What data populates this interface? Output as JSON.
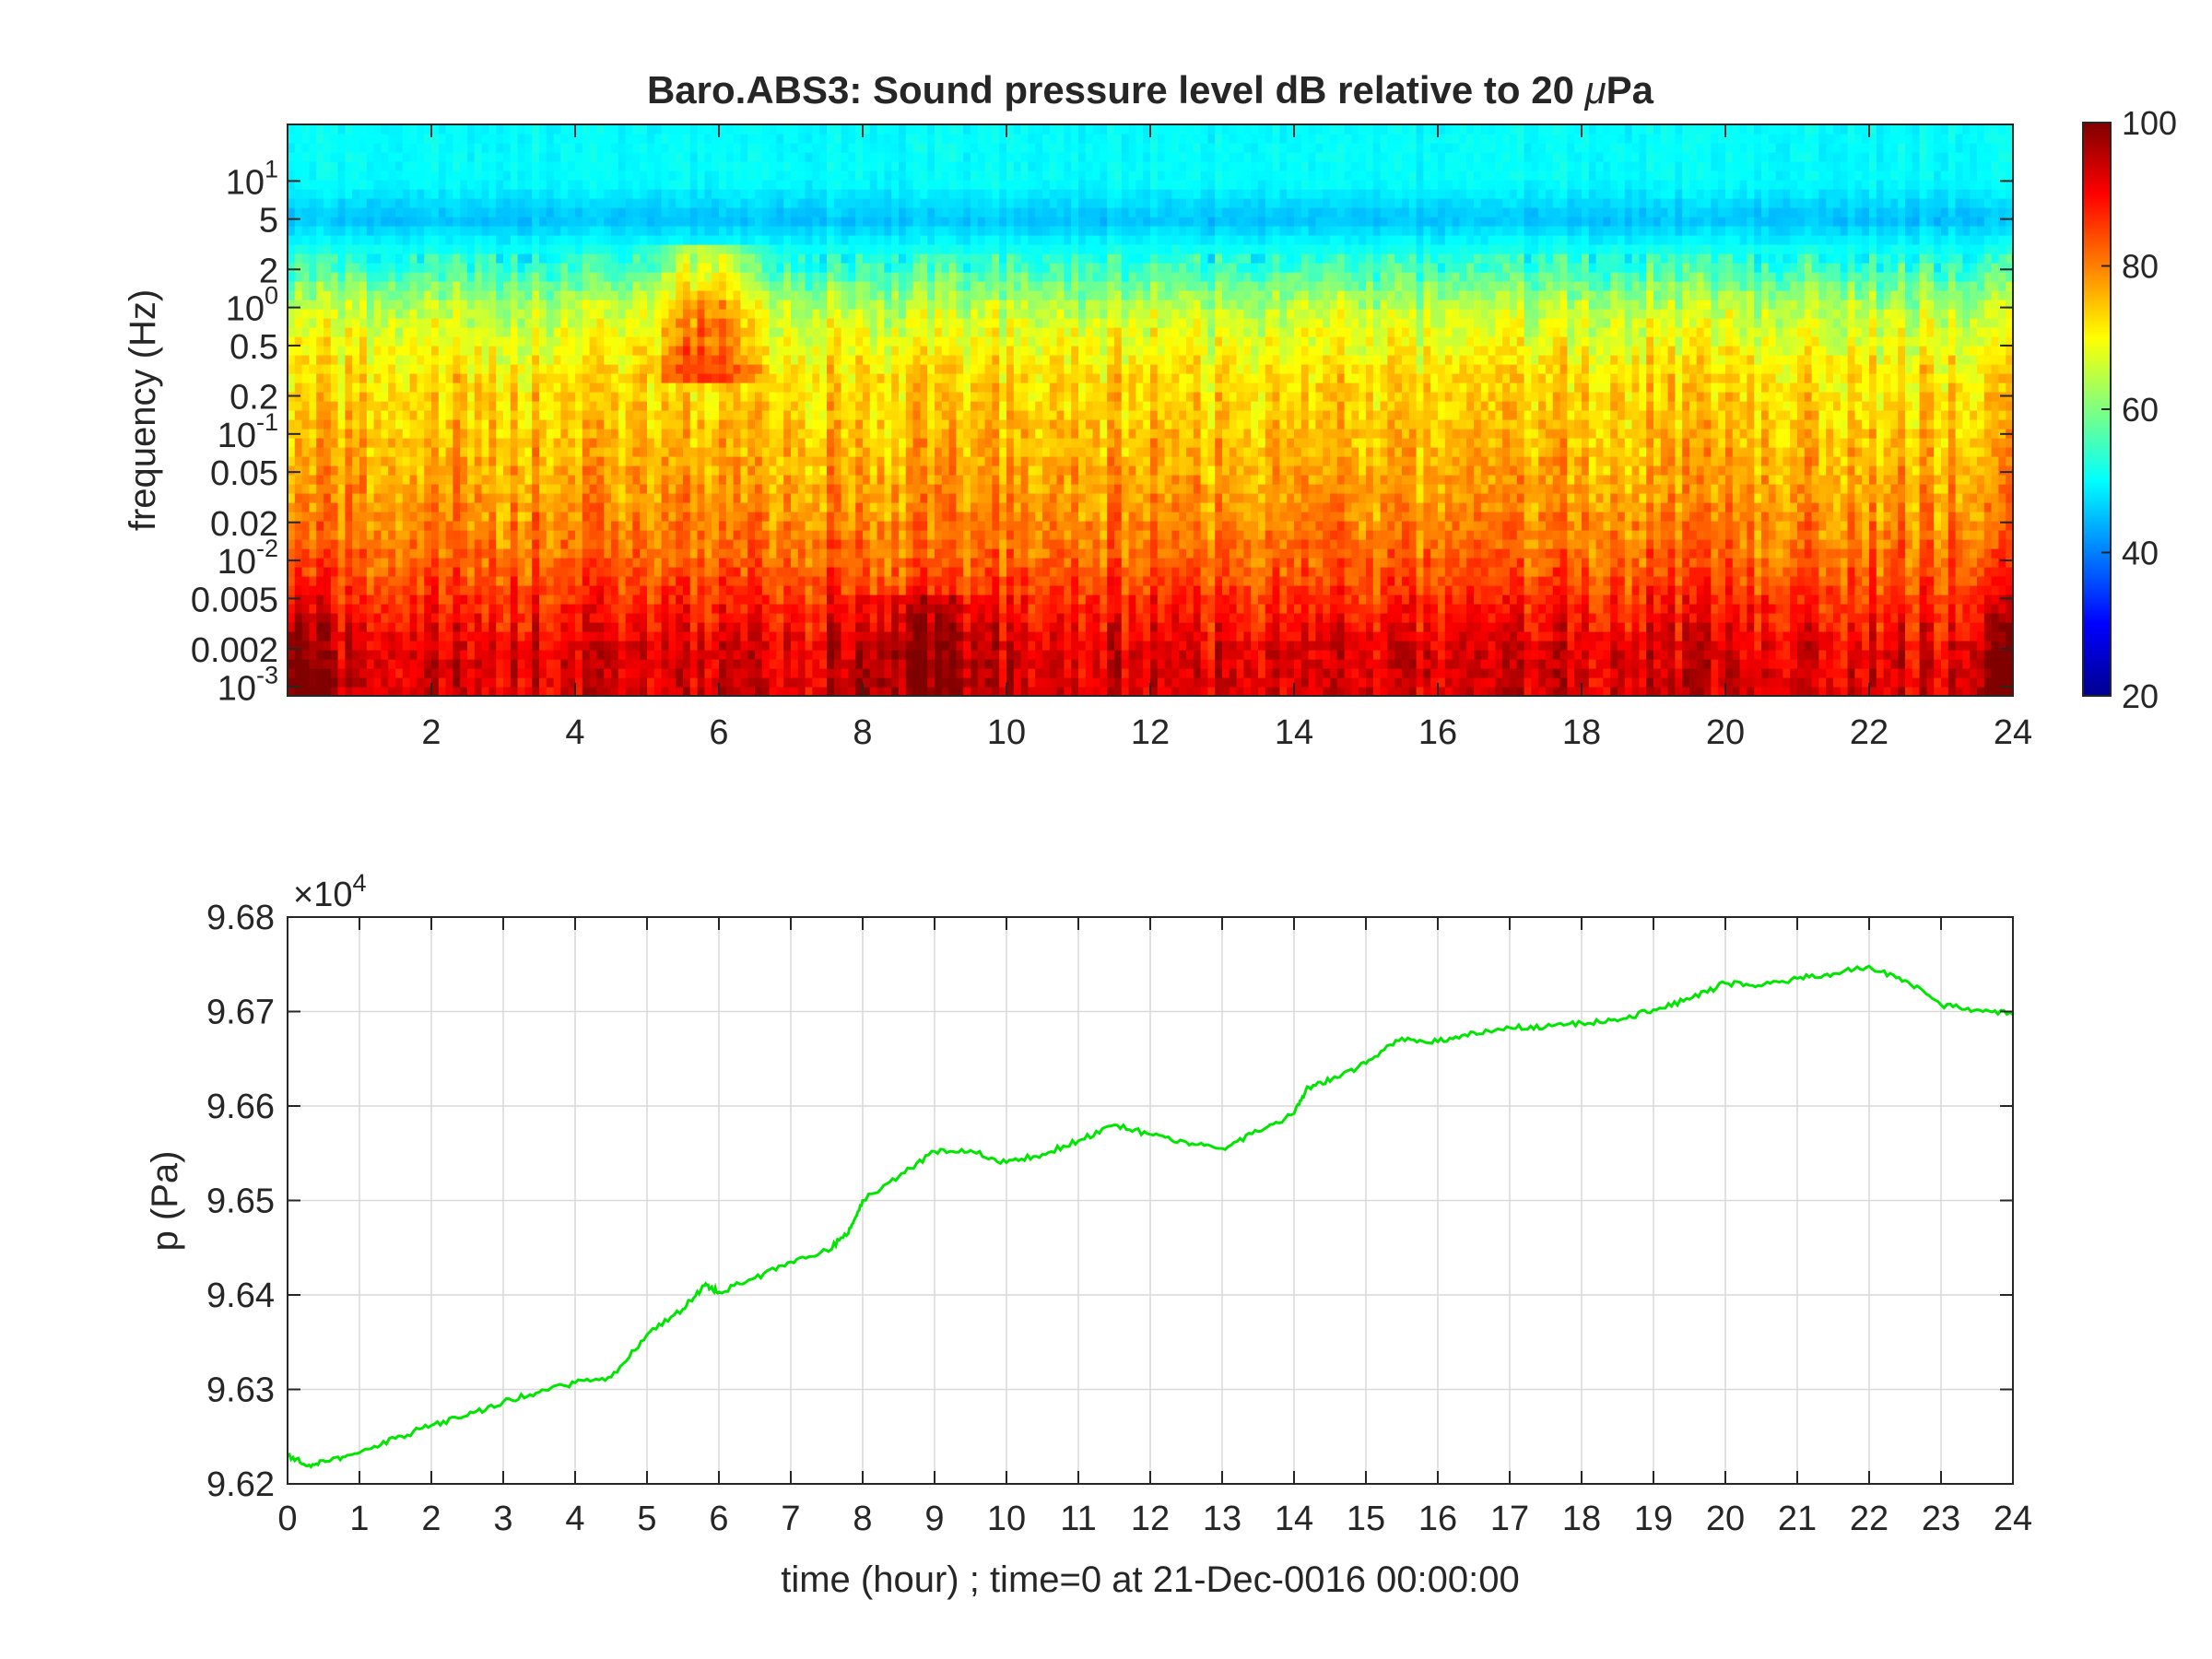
{
  "chart_data": [
    {
      "type": "heatmap",
      "title": "Baro.ABS3: Sound pressure level dB relative to 20 μPa",
      "title_prefix": "Baro.ABS3: Sound pressure level dB relative to 20 ",
      "title_mu": "μ",
      "title_suffix": "Pa",
      "ylabel": "frequency (Hz)",
      "xlabel": "",
      "y_scale": "log",
      "xlim": [
        0,
        24
      ],
      "ylim": [
        0.00085,
        28
      ],
      "x_ticks": [
        2,
        4,
        6,
        8,
        10,
        12,
        14,
        16,
        18,
        20,
        22,
        24
      ],
      "x_tick_labels": [
        "2",
        "4",
        "6",
        "8",
        "10",
        "12",
        "14",
        "16",
        "18",
        "20",
        "22",
        "24"
      ],
      "y_ticks": [
        {
          "value": 10,
          "label": "10",
          "exp": "1"
        },
        {
          "value": 5,
          "label": "5",
          "exp": ""
        },
        {
          "value": 2,
          "label": "2",
          "exp": ""
        },
        {
          "value": 1,
          "label": "10",
          "exp": "0"
        },
        {
          "value": 0.5,
          "label": "0.5",
          "exp": ""
        },
        {
          "value": 0.2,
          "label": "0.2",
          "exp": ""
        },
        {
          "value": 0.1,
          "label": "10",
          "exp": "-1"
        },
        {
          "value": 0.05,
          "label": "0.05",
          "exp": ""
        },
        {
          "value": 0.02,
          "label": "0.02",
          "exp": ""
        },
        {
          "value": 0.01,
          "label": "10",
          "exp": "-2"
        },
        {
          "value": 0.005,
          "label": "0.005",
          "exp": ""
        },
        {
          "value": 0.002,
          "label": "0.002",
          "exp": ""
        },
        {
          "value": 0.001,
          "label": "10",
          "exp": "-3"
        }
      ],
      "colormap": "jet",
      "colorbar": {
        "clim": [
          20,
          100
        ],
        "ticks": [
          20,
          40,
          60,
          80,
          100
        ],
        "tick_labels": [
          "20",
          "40",
          "60",
          "80",
          "100"
        ]
      },
      "levels_db": {
        "f_above_10Hz": 50,
        "f_5Hz": 45,
        "f_1Hz": 65,
        "f_0.1Hz": 75,
        "f_0.01Hz": 82,
        "f_0.002Hz": 92,
        "hotspots": [
          {
            "time_h": 5.8,
            "freq_hz": 1.5,
            "db": 82
          },
          {
            "time_h": 8.8,
            "freq_hz": 0.002,
            "db": 97
          }
        ]
      }
    },
    {
      "type": "line",
      "title": "",
      "ylabel": "p (Pa)",
      "xlabel": "time (hour) ; time=0 at 21-Dec-0016 00:00:00",
      "xlim": [
        0,
        24
      ],
      "ylim": [
        96200,
        96800
      ],
      "grid": true,
      "y_exponent_label": "×10",
      "y_exponent": "4",
      "x_ticks": [
        0,
        1,
        2,
        3,
        4,
        5,
        6,
        7,
        8,
        9,
        10,
        11,
        12,
        13,
        14,
        15,
        16,
        17,
        18,
        19,
        20,
        21,
        22,
        23,
        24
      ],
      "x_tick_labels": [
        "0",
        "1",
        "2",
        "3",
        "4",
        "5",
        "6",
        "7",
        "8",
        "9",
        "10",
        "11",
        "12",
        "13",
        "14",
        "15",
        "16",
        "17",
        "18",
        "19",
        "20",
        "21",
        "22",
        "23",
        "24"
      ],
      "y_ticks": [
        96200,
        96300,
        96400,
        96500,
        96600,
        96700,
        96800
      ],
      "y_tick_labels": [
        "9.62",
        "9.63",
        "9.64",
        "9.65",
        "9.66",
        "9.67",
        "9.68"
      ],
      "line_color": "#00e600",
      "series": [
        {
          "x": [
            0,
            0.3,
            0.6,
            1.0,
            1.5,
            2.0,
            2.5,
            3.0,
            3.5,
            4.0,
            4.5,
            5.0,
            5.5,
            5.8,
            6.0,
            6.5,
            7.0,
            7.5,
            7.8,
            8.0,
            8.5,
            9.0,
            9.5,
            10.0,
            10.5,
            11.0,
            11.5,
            12.0,
            12.5,
            13.0,
            13.5,
            14.0,
            14.2,
            14.6,
            15.0,
            15.5,
            16.0,
            16.5,
            17.0,
            17.5,
            18.0,
            18.5,
            19.0,
            19.5,
            20.0,
            20.5,
            21.0,
            21.5,
            22.0,
            22.5,
            23.0,
            23.5,
            24.0
          ],
          "y": [
            96230,
            96220,
            96225,
            96233,
            96248,
            96262,
            96272,
            96287,
            96297,
            96307,
            96313,
            96358,
            96385,
            96410,
            96403,
            96418,
            96435,
            96447,
            96465,
            96500,
            96525,
            96552,
            96553,
            96540,
            96549,
            96563,
            96580,
            96570,
            96562,
            96555,
            96573,
            96592,
            96620,
            96630,
            96645,
            96672,
            96668,
            96678,
            96683,
            96684,
            96688,
            96690,
            96702,
            96713,
            96730,
            96727,
            96735,
            96740,
            96748,
            96733,
            96707,
            96702,
            96697
          ]
        }
      ]
    }
  ]
}
